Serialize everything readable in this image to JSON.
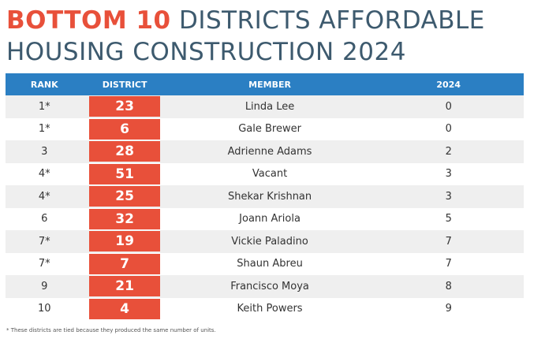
{
  "header": {
    "title_highlight": "BOTTOM 10",
    "title_rest": "DISTRICTS AFFORDABLE",
    "title_line2": "HOUSING CONSTRUCTION 2024"
  },
  "table": {
    "columns": [
      "RANK",
      "DISTRICT",
      "MEMBER",
      "2024"
    ],
    "rows": [
      [
        "1*",
        23,
        "Linda Lee",
        0
      ],
      [
        "1*",
        6,
        "Gale Brewer",
        0
      ],
      [
        "3",
        28,
        "Adrienne Adams",
        2
      ],
      [
        "4*",
        51,
        "Vacant",
        3
      ],
      [
        "4*",
        25,
        "Shekar Krishnan",
        3
      ],
      [
        "6",
        32,
        "Joann Ariola",
        5
      ],
      [
        "7*",
        19,
        "Vickie Paladino",
        7
      ],
      [
        "7*",
        7,
        "Shaun Abreu",
        7
      ],
      [
        "9",
        21,
        "Francisco Moya",
        8
      ],
      [
        "10",
        4,
        "Keith Powers",
        9
      ]
    ]
  },
  "footnote": "* These districts are tied because they produced the same number of units."
}
